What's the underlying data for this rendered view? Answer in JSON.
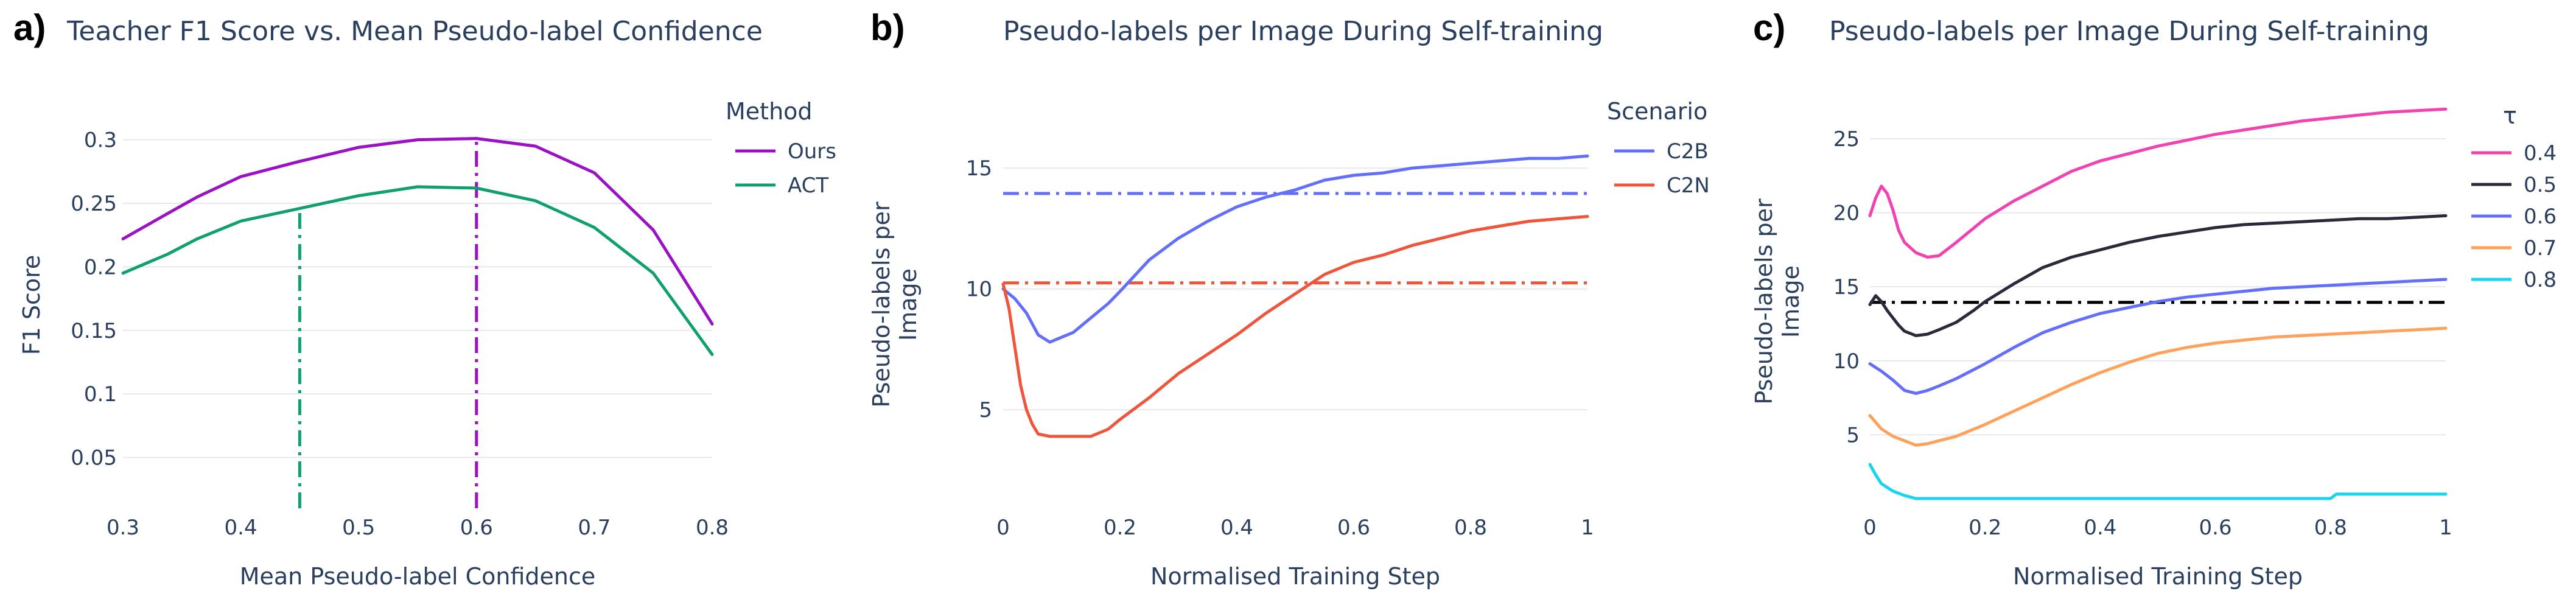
{
  "chart_data": [
    {
      "type": "line",
      "letter": "a)",
      "title": "Teacher F1 Score vs. Mean Pseudo-label Confidence",
      "xlabel": "Mean Pseudo-label Confidence",
      "ylabel": "F1 Score",
      "xlim": [
        0.3,
        0.8
      ],
      "ylim": [
        0.01,
        0.33
      ],
      "xticks": [
        {
          "v": 0.3,
          "label": "0.3"
        },
        {
          "v": 0.4,
          "label": "0.4"
        },
        {
          "v": 0.5,
          "label": "0.5"
        },
        {
          "v": 0.6,
          "label": "0.6"
        },
        {
          "v": 0.7,
          "label": "0.7"
        },
        {
          "v": 0.8,
          "label": "0.8"
        }
      ],
      "yticks": [
        {
          "v": 0.05,
          "label": "0.05"
        },
        {
          "v": 0.1,
          "label": "0.1"
        },
        {
          "v": 0.15,
          "label": "0.15"
        },
        {
          "v": 0.2,
          "label": "0.2"
        },
        {
          "v": 0.25,
          "label": "0.25"
        },
        {
          "v": 0.3,
          "label": "0.3"
        }
      ],
      "grid": true,
      "legend_title": "Method",
      "legend_position": "right",
      "series": [
        {
          "name": "Ours",
          "color": "#9a12c4",
          "x": [
            0.3,
            0.338,
            0.363,
            0.4,
            0.45,
            0.5,
            0.55,
            0.6,
            0.65,
            0.7,
            0.75,
            0.8
          ],
          "y": [
            0.222,
            0.242,
            0.255,
            0.271,
            0.283,
            0.294,
            0.3,
            0.301,
            0.295,
            0.274,
            0.229,
            0.155
          ]
        },
        {
          "name": "ACT",
          "color": "#10a070",
          "x": [
            0.3,
            0.338,
            0.363,
            0.4,
            0.45,
            0.5,
            0.55,
            0.6,
            0.65,
            0.7,
            0.75,
            0.8
          ],
          "y": [
            0.195,
            0.21,
            0.222,
            0.236,
            0.246,
            0.256,
            0.263,
            0.262,
            0.252,
            0.231,
            0.195,
            0.131
          ]
        }
      ],
      "vlines": [
        {
          "x": 0.45,
          "y0": 0.01,
          "y1": 0.246,
          "color": "#10a070",
          "dash": "dashdot"
        },
        {
          "x": 0.6,
          "y0": 0.01,
          "y1": 0.301,
          "color": "#9a12c4",
          "dash": "dashdot"
        }
      ],
      "hlines": []
    },
    {
      "type": "line",
      "letter": "b)",
      "title": "Pseudo-labels per Image During Self-training",
      "xlabel": "Normalised Training Step",
      "ylabel": [
        "Pseudo-labels per",
        "Image"
      ],
      "xlim": [
        0,
        1
      ],
      "ylim": [
        0.7,
        18
      ],
      "xticks": [
        {
          "v": 0,
          "label": "0"
        },
        {
          "v": 0.2,
          "label": "0.2"
        },
        {
          "v": 0.4,
          "label": "0.4"
        },
        {
          "v": 0.6,
          "label": "0.6"
        },
        {
          "v": 0.8,
          "label": "0.8"
        },
        {
          "v": 1,
          "label": "1"
        }
      ],
      "yticks": [
        {
          "v": 5,
          "label": "5"
        },
        {
          "v": 10,
          "label": "10"
        },
        {
          "v": 15,
          "label": "15"
        }
      ],
      "grid": true,
      "legend_title": "Scenario",
      "legend_position": "right",
      "series": [
        {
          "name": "C2B",
          "color": "#636efa",
          "x": [
            0,
            0.02,
            0.04,
            0.06,
            0.08,
            0.1,
            0.12,
            0.15,
            0.18,
            0.2,
            0.25,
            0.3,
            0.35,
            0.4,
            0.45,
            0.5,
            0.55,
            0.6,
            0.65,
            0.7,
            0.75,
            0.8,
            0.85,
            0.9,
            0.95,
            1.0
          ],
          "y": [
            10.0,
            9.6,
            9.0,
            8.1,
            7.8,
            8.0,
            8.2,
            8.8,
            9.4,
            9.9,
            11.2,
            12.1,
            12.8,
            13.4,
            13.8,
            14.1,
            14.5,
            14.7,
            14.8,
            15.0,
            15.1,
            15.2,
            15.3,
            15.4,
            15.4,
            15.5
          ]
        },
        {
          "name": "C2N",
          "color": "#ef553b",
          "x": [
            0,
            0.01,
            0.02,
            0.03,
            0.04,
            0.05,
            0.06,
            0.08,
            0.1,
            0.12,
            0.15,
            0.18,
            0.2,
            0.25,
            0.3,
            0.35,
            0.4,
            0.45,
            0.5,
            0.55,
            0.6,
            0.65,
            0.7,
            0.75,
            0.8,
            0.85,
            0.9,
            0.95,
            1.0
          ],
          "y": [
            10.2,
            9.2,
            7.6,
            6.0,
            5.0,
            4.4,
            4.0,
            3.9,
            3.9,
            3.9,
            3.9,
            4.2,
            4.6,
            5.5,
            6.5,
            7.3,
            8.1,
            9.0,
            9.8,
            10.6,
            11.1,
            11.4,
            11.8,
            12.1,
            12.4,
            12.6,
            12.8,
            12.9,
            13.0
          ]
        }
      ],
      "vlines": [],
      "hlines": [
        {
          "y": 13.95,
          "color": "#636efa",
          "dash": "dashdot"
        },
        {
          "y": 10.25,
          "color": "#ef553b",
          "dash": "dashdot"
        }
      ]
    },
    {
      "type": "line",
      "letter": "c)",
      "title": "Pseudo-labels per Image During Self-training",
      "xlabel": "Normalised Training Step",
      "ylabel": [
        "Pseudo-labels per",
        "Image"
      ],
      "xlim": [
        0,
        1
      ],
      "ylim": [
        0,
        28
      ],
      "xticks": [
        {
          "v": 0,
          "label": "0"
        },
        {
          "v": 0.2,
          "label": "0.2"
        },
        {
          "v": 0.4,
          "label": "0.4"
        },
        {
          "v": 0.6,
          "label": "0.6"
        },
        {
          "v": 0.8,
          "label": "0.8"
        },
        {
          "v": 1,
          "label": "1"
        }
      ],
      "yticks": [
        {
          "v": 5,
          "label": "5"
        },
        {
          "v": 10,
          "label": "10"
        },
        {
          "v": 15,
          "label": "15"
        },
        {
          "v": 20,
          "label": "20"
        },
        {
          "v": 25,
          "label": "25"
        }
      ],
      "grid": true,
      "legend_title": "τ",
      "legend_position": "right",
      "series": [
        {
          "name": "0.4",
          "color": "#f042b1",
          "x": [
            0,
            0.01,
            0.02,
            0.03,
            0.04,
            0.05,
            0.06,
            0.08,
            0.1,
            0.12,
            0.15,
            0.2,
            0.25,
            0.3,
            0.35,
            0.4,
            0.45,
            0.5,
            0.55,
            0.6,
            0.65,
            0.7,
            0.75,
            0.8,
            0.85,
            0.9,
            0.95,
            1.0
          ],
          "y": [
            19.8,
            21.0,
            21.8,
            21.3,
            20.2,
            18.8,
            18.0,
            17.3,
            17.0,
            17.1,
            18.0,
            19.6,
            20.8,
            21.8,
            22.8,
            23.5,
            24.0,
            24.5,
            24.9,
            25.3,
            25.6,
            25.9,
            26.2,
            26.4,
            26.6,
            26.8,
            26.9,
            27.0
          ]
        },
        {
          "name": "0.5",
          "color": "#2a2a3a",
          "x": [
            0,
            0.01,
            0.02,
            0.03,
            0.04,
            0.05,
            0.06,
            0.08,
            0.1,
            0.12,
            0.15,
            0.18,
            0.2,
            0.25,
            0.3,
            0.35,
            0.4,
            0.45,
            0.5,
            0.55,
            0.6,
            0.65,
            0.7,
            0.75,
            0.8,
            0.85,
            0.9,
            0.95,
            1.0
          ],
          "y": [
            13.8,
            14.4,
            14.0,
            13.4,
            12.9,
            12.4,
            12.0,
            11.7,
            11.8,
            12.1,
            12.6,
            13.4,
            14.0,
            15.2,
            16.3,
            17.0,
            17.5,
            18.0,
            18.4,
            18.7,
            19.0,
            19.2,
            19.3,
            19.4,
            19.5,
            19.6,
            19.6,
            19.7,
            19.8
          ]
        },
        {
          "name": "0.6",
          "color": "#636efa",
          "x": [
            0,
            0.02,
            0.04,
            0.06,
            0.08,
            0.1,
            0.12,
            0.15,
            0.2,
            0.25,
            0.3,
            0.35,
            0.4,
            0.45,
            0.5,
            0.55,
            0.6,
            0.65,
            0.7,
            0.75,
            0.8,
            0.85,
            0.9,
            0.95,
            1.0
          ],
          "y": [
            9.8,
            9.3,
            8.7,
            8.0,
            7.8,
            8.0,
            8.3,
            8.8,
            9.8,
            10.9,
            11.9,
            12.6,
            13.2,
            13.6,
            14.0,
            14.3,
            14.5,
            14.7,
            14.9,
            15.0,
            15.1,
            15.2,
            15.3,
            15.4,
            15.5
          ]
        },
        {
          "name": "0.7",
          "color": "#ffa15a",
          "x": [
            0,
            0.02,
            0.04,
            0.06,
            0.08,
            0.1,
            0.12,
            0.15,
            0.2,
            0.25,
            0.3,
            0.35,
            0.4,
            0.45,
            0.5,
            0.55,
            0.6,
            0.65,
            0.7,
            0.75,
            0.8,
            0.85,
            0.9,
            0.95,
            1.0
          ],
          "y": [
            6.3,
            5.4,
            4.9,
            4.6,
            4.3,
            4.4,
            4.6,
            4.9,
            5.7,
            6.6,
            7.5,
            8.4,
            9.2,
            9.9,
            10.5,
            10.9,
            11.2,
            11.4,
            11.6,
            11.7,
            11.8,
            11.9,
            12.0,
            12.1,
            12.2
          ]
        },
        {
          "name": "0.8",
          "color": "#19d3f3",
          "x": [
            0,
            0.01,
            0.02,
            0.04,
            0.06,
            0.08,
            0.1,
            0.2,
            0.4,
            0.6,
            0.8,
            0.81,
            0.85,
            0.9,
            0.95,
            1.0
          ],
          "y": [
            3.0,
            2.3,
            1.7,
            1.2,
            0.9,
            0.7,
            0.7,
            0.7,
            0.7,
            0.7,
            0.7,
            1.0,
            1.0,
            1.0,
            1.0,
            1.0
          ]
        }
      ],
      "vlines": [],
      "hlines": [
        {
          "y": 13.95,
          "color": "#000000",
          "dash": "dashdot"
        }
      ]
    }
  ]
}
